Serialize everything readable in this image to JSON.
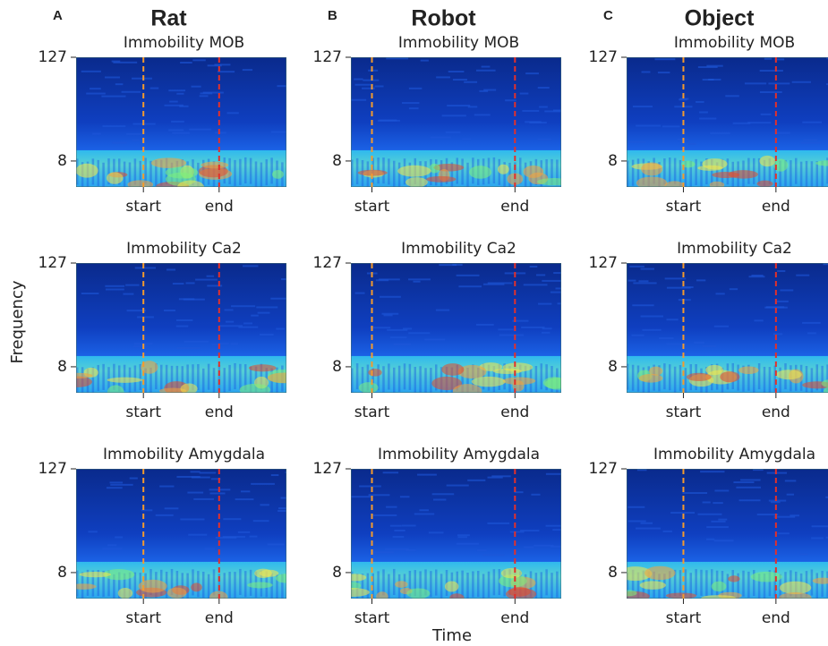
{
  "figure": {
    "columns": [
      {
        "letter": "A",
        "title": "Rat"
      },
      {
        "letter": "B",
        "title": "Robot"
      },
      {
        "letter": "C",
        "title": "Object"
      }
    ],
    "ylabel": "Frequency",
    "xlabel": "Time"
  },
  "chart_data": [
    {
      "type": "spectrogram",
      "title": "Immobility MOB",
      "ylim": [
        4,
        127
      ],
      "yticks": [
        127,
        8
      ],
      "log_y": true,
      "xlim": [
        0,
        1
      ],
      "xticks": [
        {
          "value": 0.32,
          "label": "start"
        },
        {
          "value": 0.68,
          "label": "end"
        }
      ],
      "marker_colors": [
        "#f39a2e",
        "#e3302a"
      ]
    },
    {
      "type": "spectrogram",
      "title": "Immobility MOB",
      "ylim": [
        4,
        127
      ],
      "yticks": [
        127,
        8
      ],
      "log_y": true,
      "xlim": [
        0,
        1
      ],
      "xticks": [
        {
          "value": 0.1,
          "label": "start"
        },
        {
          "value": 0.78,
          "label": "end"
        }
      ],
      "marker_colors": [
        "#f39a2e",
        "#e3302a"
      ]
    },
    {
      "type": "spectrogram",
      "title": "Immobility MOB",
      "ylim": [
        4,
        127
      ],
      "yticks": [
        127,
        8
      ],
      "log_y": true,
      "xlim": [
        0,
        1
      ],
      "xticks": [
        {
          "value": 0.27,
          "label": "start"
        },
        {
          "value": 0.71,
          "label": "end"
        }
      ],
      "marker_colors": [
        "#f39a2e",
        "#e3302a"
      ]
    },
    {
      "type": "spectrogram",
      "title": "Immobility Ca2",
      "ylim": [
        4,
        127
      ],
      "yticks": [
        127,
        8
      ],
      "log_y": true,
      "xlim": [
        0,
        1
      ],
      "xticks": [
        {
          "value": 0.32,
          "label": "start"
        },
        {
          "value": 0.68,
          "label": "end"
        }
      ],
      "marker_colors": [
        "#f39a2e",
        "#e3302a"
      ]
    },
    {
      "type": "spectrogram",
      "title": "Immobility Ca2",
      "ylim": [
        4,
        127
      ],
      "yticks": [
        127,
        8
      ],
      "log_y": true,
      "xlim": [
        0,
        1
      ],
      "xticks": [
        {
          "value": 0.1,
          "label": "start"
        },
        {
          "value": 0.78,
          "label": "end"
        }
      ],
      "marker_colors": [
        "#f39a2e",
        "#e3302a"
      ]
    },
    {
      "type": "spectrogram",
      "title": "Immobility Ca2",
      "ylim": [
        4,
        127
      ],
      "yticks": [
        127,
        8
      ],
      "log_y": true,
      "xlim": [
        0,
        1
      ],
      "xticks": [
        {
          "value": 0.27,
          "label": "start"
        },
        {
          "value": 0.71,
          "label": "end"
        }
      ],
      "marker_colors": [
        "#f39a2e",
        "#e3302a"
      ]
    },
    {
      "type": "spectrogram",
      "title": "Immobility Amygdala",
      "ylim": [
        4,
        127
      ],
      "yticks": [
        127,
        8
      ],
      "log_y": true,
      "xlim": [
        0,
        1
      ],
      "xticks": [
        {
          "value": 0.32,
          "label": "start"
        },
        {
          "value": 0.68,
          "label": "end"
        }
      ],
      "marker_colors": [
        "#f39a2e",
        "#e3302a"
      ]
    },
    {
      "type": "spectrogram",
      "title": "Immobility Amygdala",
      "ylim": [
        4,
        127
      ],
      "yticks": [
        127,
        8
      ],
      "log_y": true,
      "xlim": [
        0,
        1
      ],
      "xticks": [
        {
          "value": 0.1,
          "label": "start"
        },
        {
          "value": 0.78,
          "label": "end"
        }
      ],
      "marker_colors": [
        "#f39a2e",
        "#e3302a"
      ]
    },
    {
      "type": "spectrogram",
      "title": "Immobility Amygdala",
      "ylim": [
        4,
        127
      ],
      "yticks": [
        127,
        8
      ],
      "log_y": true,
      "xlim": [
        0,
        1
      ],
      "xticks": [
        {
          "value": 0.27,
          "label": "start"
        },
        {
          "value": 0.71,
          "label": "end"
        }
      ],
      "marker_colors": [
        "#f39a2e",
        "#e3302a"
      ]
    }
  ]
}
